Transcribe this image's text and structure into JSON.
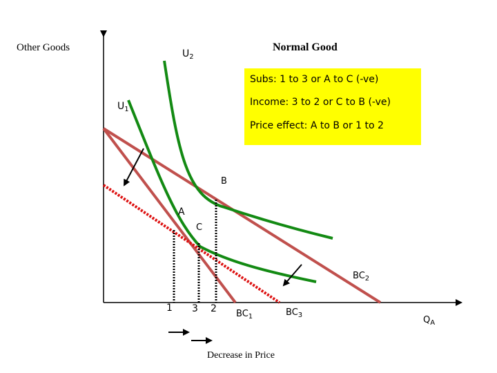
{
  "title": "Normal Good",
  "y_axis_label": "Other Goods",
  "x_axis_label": {
    "main": "Q",
    "sub": "A"
  },
  "bottom_caption": "Decrease in Price",
  "curves": {
    "u1": {
      "main": "U",
      "sub": "1"
    },
    "u2": {
      "main": "U",
      "sub": "2"
    }
  },
  "budget_lines": {
    "bc1": {
      "main": "BC",
      "sub": "1"
    },
    "bc2": {
      "main": "BC",
      "sub": "2"
    },
    "bc3": {
      "main": "BC",
      "sub": "3"
    }
  },
  "points": {
    "a": "A",
    "b": "B",
    "c": "C"
  },
  "x_ticks": {
    "t1": "1",
    "t3": "3",
    "t2": "2"
  },
  "legend": {
    "lines": [
      "Subs: 1 to 3 or A to C (-ve)",
      "Income: 3 to 2 or C to B (-ve)",
      "Price effect: A to B or 1 to 2"
    ]
  },
  "colors": {
    "legend_bg": "#ffff00",
    "indifference": "#138a13",
    "budget": "#c0504d",
    "budget_dotted": "#dd1111",
    "axis": "#000000"
  }
}
